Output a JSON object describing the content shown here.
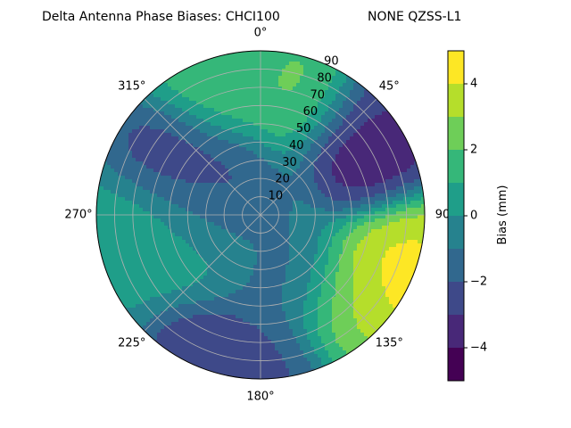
{
  "chart_data": {
    "type": "polar-contour",
    "title": "Delta Antenna Phase Biases: CHCI100",
    "subtitle": "NONE QZSS-L1",
    "angular_ticks": [
      "0°",
      "45°",
      "90",
      "135°",
      "180°",
      "225°",
      "270°",
      "315°"
    ],
    "radial_ticks": [
      "10",
      "20",
      "30",
      "40",
      "50",
      "60",
      "70",
      "80",
      "90"
    ],
    "radial_range": [
      0,
      90
    ],
    "angular_direction": "clockwise",
    "zero_location": "top",
    "grid": true,
    "colorbar": {
      "label": "Bias (mm)",
      "range": [
        -5,
        5
      ],
      "levels": [
        -5,
        -4,
        -3,
        -2,
        -1,
        0,
        1,
        2,
        3,
        4,
        5
      ],
      "tick_labels": [
        "−4",
        "−2",
        "0",
        "2",
        "4"
      ],
      "tick_values": [
        -4,
        -2,
        0,
        2,
        4
      ],
      "colors": [
        "#440154",
        "#482878",
        "#3e4989",
        "#31688e",
        "#26828e",
        "#1f9e89",
        "#35b779",
        "#6ece58",
        "#b5de2b",
        "#fde725"
      ]
    },
    "field_features": [
      {
        "azimuth": 20,
        "elevation_radius": 75,
        "value": 2.5
      },
      {
        "azimuth": 340,
        "elevation_radius": 80,
        "value": 2.0
      },
      {
        "azimuth": 60,
        "elevation_radius": 70,
        "value": -4.5
      },
      {
        "azimuth": 50,
        "elevation_radius": 85,
        "value": -3.0
      },
      {
        "azimuth": 105,
        "elevation_radius": 85,
        "value": 4.5
      },
      {
        "azimuth": 120,
        "elevation_radius": 85,
        "value": 5.0
      },
      {
        "azimuth": 135,
        "elevation_radius": 70,
        "value": 3.0
      },
      {
        "azimuth": 200,
        "elevation_radius": 85,
        "value": -3.5
      },
      {
        "azimuth": 180,
        "elevation_radius": 85,
        "value": -2.5
      },
      {
        "azimuth": 300,
        "elevation_radius": 60,
        "value": -3.0
      },
      {
        "azimuth": 290,
        "elevation_radius": 25,
        "value": -2.5
      },
      {
        "azimuth": 265,
        "elevation_radius": 70,
        "value": 1.0
      },
      {
        "azimuth": 245,
        "elevation_radius": 40,
        "value": 0.5
      },
      {
        "azimuth": 160,
        "elevation_radius": 40,
        "value": -1.5
      }
    ]
  }
}
